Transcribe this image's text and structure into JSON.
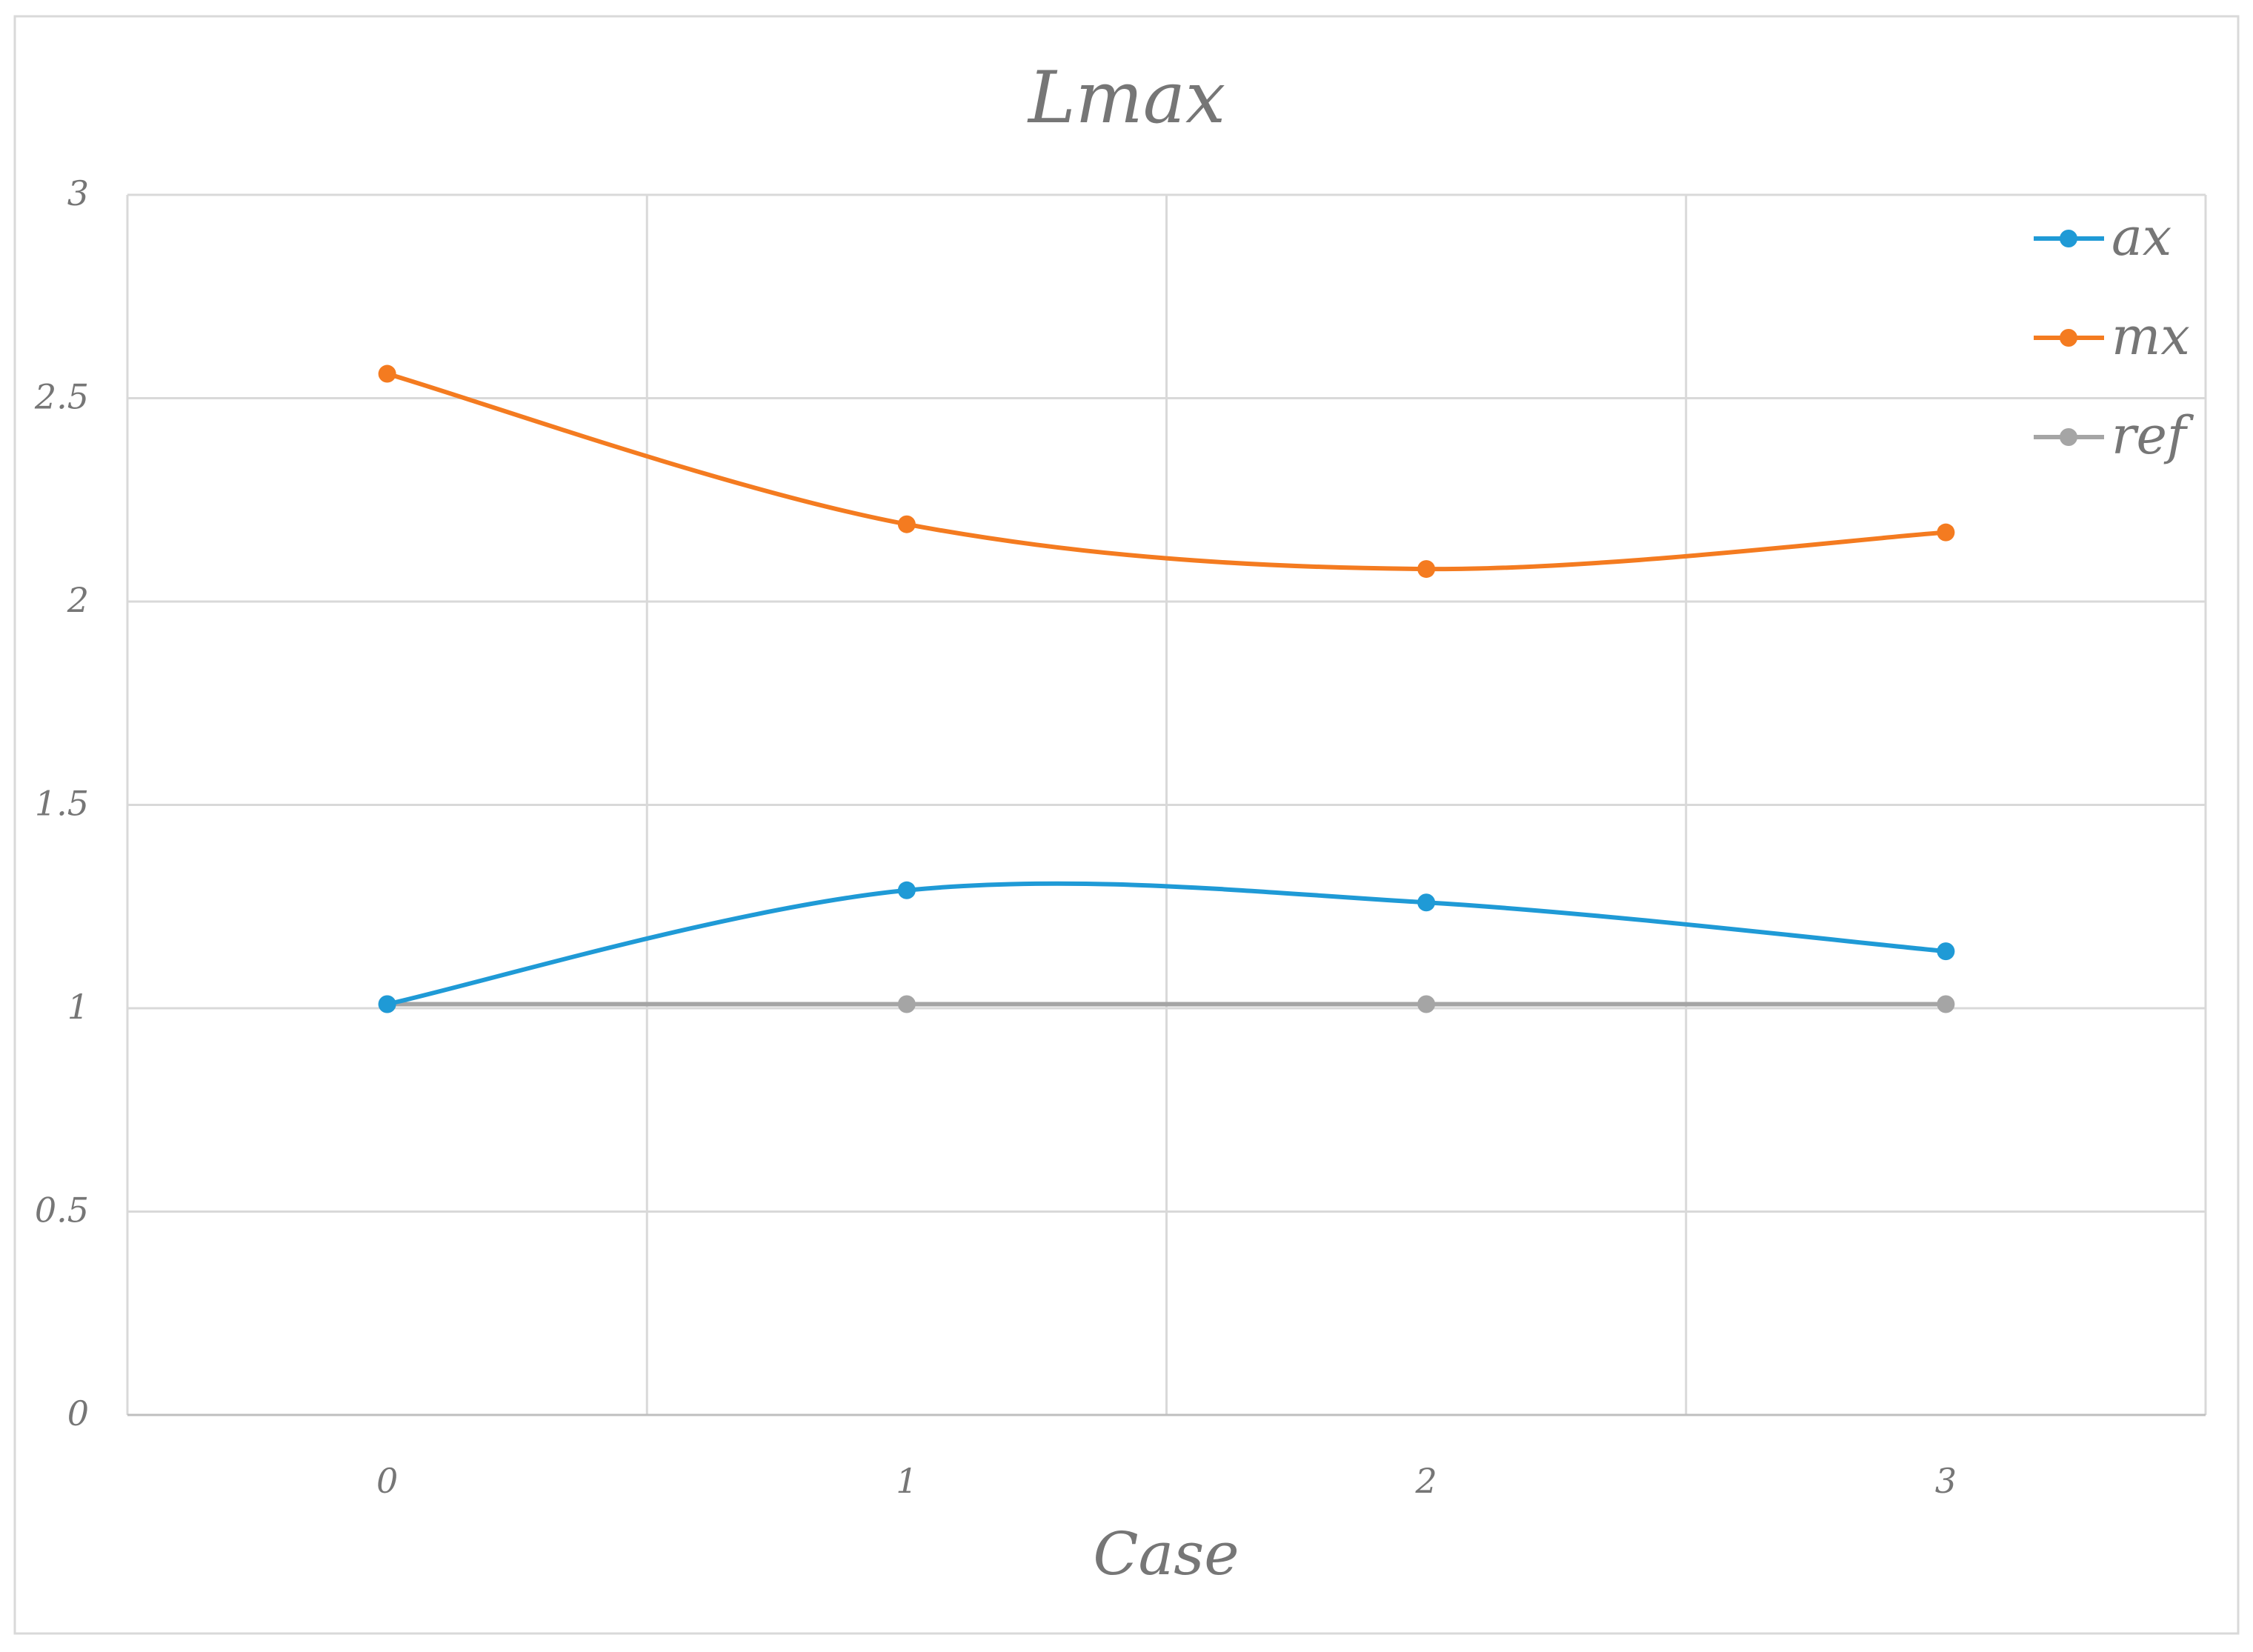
{
  "chart_data": {
    "type": "line",
    "title": "Lmax",
    "xlabel": "Case",
    "ylabel": "",
    "x": [
      0,
      1,
      2,
      3
    ],
    "xlim": [
      -0.5,
      3.5
    ],
    "ylim": [
      0,
      3
    ],
    "yticks": [
      0,
      0.5,
      1,
      1.5,
      2,
      2.5,
      3
    ],
    "ytick_labels": [
      "0",
      "0.5",
      "1",
      "1.5",
      "2",
      "2.5",
      "3"
    ],
    "xtick_labels": [
      "0",
      "1",
      "2",
      "3"
    ],
    "grid": true,
    "smooth": true,
    "legend_position": "top-right",
    "series": [
      {
        "name": "ax",
        "color": "#1f9ad6",
        "values": [
          1.01,
          1.29,
          1.26,
          1.14
        ]
      },
      {
        "name": "mx",
        "color": "#f47b20",
        "values": [
          2.56,
          2.19,
          2.08,
          2.17
        ]
      },
      {
        "name": "ref",
        "color": "#a5a5a5",
        "values": [
          1.01,
          1.01,
          1.01,
          1.01
        ]
      }
    ]
  }
}
